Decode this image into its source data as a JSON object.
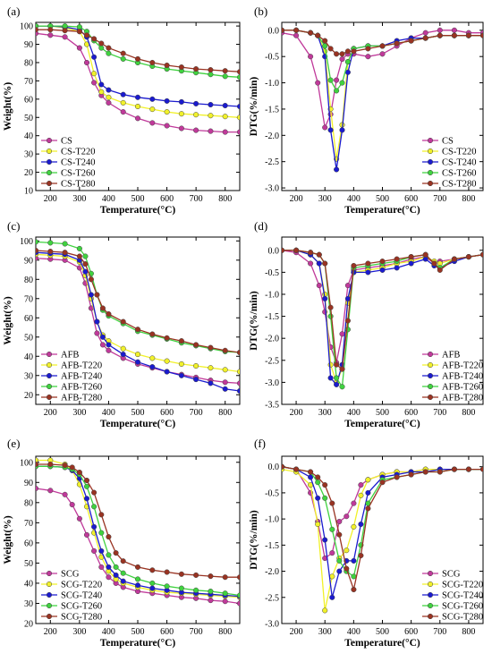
{
  "colors": [
    "#c0399a",
    "#f1f12a",
    "#1a1acf",
    "#3fd23f",
    "#993322"
  ],
  "chart_data": [
    {
      "type": "line",
      "panel_label": "(a)",
      "xlabel": "Temperature(°C)",
      "ylabel": "Weight(%)",
      "xlim": [
        150,
        850
      ],
      "ylim": [
        10,
        102
      ],
      "xticks": [
        200,
        300,
        400,
        500,
        600,
        700,
        800
      ],
      "yticks": [
        10,
        20,
        30,
        40,
        50,
        60,
        70,
        80,
        90,
        100
      ],
      "legend_position": "bottom-left",
      "x": [
        150,
        200,
        250,
        300,
        325,
        350,
        375,
        400,
        450,
        500,
        550,
        600,
        650,
        700,
        750,
        800,
        850
      ],
      "series": [
        {
          "name": "CS",
          "values": [
            96,
            95,
            94,
            88,
            80,
            69,
            62,
            58,
            53,
            49.5,
            47,
            45.5,
            44,
            43,
            42.5,
            42,
            42
          ]
        },
        {
          "name": "CS-T220",
          "values": [
            100,
            100,
            99,
            97,
            90,
            74,
            64,
            61,
            58,
            56,
            54.5,
            53,
            52,
            51.5,
            51,
            50.5,
            50
          ]
        },
        {
          "name": "CS-T240",
          "values": [
            100,
            100,
            99.5,
            98,
            94,
            83,
            68,
            65,
            62.5,
            61,
            60,
            59,
            58.5,
            57.5,
            57,
            56.5,
            56
          ]
        },
        {
          "name": "CS-T260",
          "values": [
            100,
            100,
            100,
            99.5,
            97,
            92,
            88,
            85,
            82,
            80,
            78,
            76.5,
            75.5,
            74.5,
            73.5,
            72.5,
            72
          ]
        },
        {
          "name": "CS-T280",
          "values": [
            98,
            98,
            97.5,
            97,
            95,
            93,
            90.5,
            88,
            85,
            82,
            80,
            78.5,
            77.5,
            76.5,
            76,
            75.5,
            75
          ]
        }
      ]
    },
    {
      "type": "line",
      "panel_label": "(b)",
      "xlabel": "Temperature(°C)",
      "ylabel": "DTG(%/min)",
      "xlim": [
        150,
        850
      ],
      "ylim": [
        -3.05,
        0.15
      ],
      "xticks": [
        200,
        300,
        400,
        500,
        600,
        700,
        800
      ],
      "yticks": [
        0.0,
        -0.5,
        -1.0,
        -1.5,
        -2.0,
        -2.5,
        -3.0
      ],
      "legend_position": "bottom-right",
      "x": [
        150,
        200,
        250,
        275,
        300,
        320,
        340,
        360,
        380,
        400,
        450,
        500,
        550,
        600,
        650,
        700,
        750,
        800,
        850
      ],
      "series": [
        {
          "name": "CS",
          "values": [
            -0.05,
            -0.1,
            -0.5,
            -1.0,
            -1.85,
            -1.6,
            -0.95,
            -0.55,
            -0.45,
            -0.45,
            -0.5,
            -0.45,
            -0.3,
            -0.15,
            -0.05,
            0.0,
            0.0,
            -0.05,
            -0.05
          ]
        },
        {
          "name": "CS-T220",
          "values": [
            0.0,
            0.0,
            -0.05,
            -0.1,
            -0.4,
            -1.5,
            -2.45,
            -1.8,
            -0.6,
            -0.35,
            -0.3,
            -0.3,
            -0.25,
            -0.2,
            -0.15,
            -0.1,
            -0.1,
            -0.1,
            -0.1
          ]
        },
        {
          "name": "CS-T240",
          "values": [
            0.0,
            0.0,
            -0.05,
            -0.1,
            -0.5,
            -1.9,
            -2.65,
            -1.9,
            -0.8,
            -0.35,
            -0.3,
            -0.3,
            -0.2,
            -0.15,
            -0.15,
            -0.1,
            -0.1,
            -0.1,
            -0.1
          ]
        },
        {
          "name": "CS-T260",
          "values": [
            0.0,
            0.0,
            -0.05,
            -0.1,
            -0.3,
            -0.95,
            -1.15,
            -1.0,
            -0.6,
            -0.35,
            -0.3,
            -0.3,
            -0.25,
            -0.2,
            -0.15,
            -0.1,
            -0.1,
            -0.1,
            -0.1
          ]
        },
        {
          "name": "CS-T280",
          "values": [
            0.0,
            0.0,
            -0.05,
            -0.1,
            -0.2,
            -0.35,
            -0.45,
            -0.45,
            -0.4,
            -0.4,
            -0.35,
            -0.3,
            -0.25,
            -0.2,
            -0.15,
            -0.1,
            -0.1,
            -0.1,
            -0.1
          ]
        }
      ]
    },
    {
      "type": "line",
      "panel_label": "(c)",
      "xlabel": "Temperature(°C)",
      "ylabel": "Weight(%)",
      "xlim": [
        150,
        850
      ],
      "ylim": [
        15,
        102
      ],
      "xticks": [
        200,
        300,
        400,
        500,
        600,
        700,
        800
      ],
      "yticks": [
        20,
        30,
        40,
        50,
        60,
        70,
        80,
        90,
        100
      ],
      "legend_position": "bottom-left",
      "x": [
        150,
        200,
        250,
        300,
        320,
        340,
        360,
        380,
        400,
        450,
        500,
        550,
        600,
        650,
        700,
        750,
        800,
        850
      ],
      "series": [
        {
          "name": "AFB",
          "values": [
            91,
            90.5,
            90,
            86,
            78,
            65,
            52,
            46,
            43,
            39,
            36,
            34,
            32,
            30.5,
            29,
            27.5,
            26.5,
            26
          ]
        },
        {
          "name": "AFB-T220",
          "values": [
            93,
            92.5,
            92,
            89,
            82,
            70,
            58,
            51,
            48,
            44,
            41,
            39,
            37.5,
            36,
            35,
            34,
            33,
            32
          ]
        },
        {
          "name": "AFB-T240",
          "values": [
            94,
            93.5,
            93,
            90,
            84,
            72,
            58,
            50,
            46,
            41,
            37,
            34.5,
            32,
            30,
            28,
            26,
            23,
            22
          ]
        },
        {
          "name": "AFB-T260",
          "values": [
            99.5,
            99,
            98.5,
            96,
            92,
            83,
            72,
            64,
            61,
            57,
            53,
            51,
            49,
            47,
            45.5,
            44,
            42.5,
            42
          ]
        },
        {
          "name": "AFB-T280",
          "values": [
            95,
            94.5,
            94,
            92,
            88,
            80,
            72,
            65,
            62,
            58,
            54,
            51.5,
            49.5,
            48,
            46,
            44.5,
            43,
            42
          ]
        }
      ]
    },
    {
      "type": "line",
      "panel_label": "(d)",
      "xlabel": "Temperature(°C)",
      "ylabel": "DTG(%/min)",
      "xlim": [
        150,
        850
      ],
      "ylim": [
        -3.5,
        0.3
      ],
      "xticks": [
        200,
        300,
        400,
        500,
        600,
        700,
        800
      ],
      "yticks": [
        0.0,
        -0.5,
        -1.0,
        -1.5,
        -2.0,
        -2.5,
        -3.0,
        -3.5
      ],
      "legend_position": "bottom-right",
      "x": [
        150,
        200,
        250,
        280,
        300,
        320,
        340,
        360,
        380,
        400,
        450,
        500,
        550,
        600,
        650,
        680,
        700,
        750,
        800,
        850
      ],
      "series": [
        {
          "name": "AFB",
          "values": [
            0.0,
            -0.05,
            -0.3,
            -0.8,
            -1.4,
            -2.2,
            -2.55,
            -1.9,
            -0.8,
            -0.45,
            -0.4,
            -0.35,
            -0.3,
            -0.2,
            -0.15,
            -0.3,
            -0.25,
            -0.2,
            -0.15,
            -0.1
          ]
        },
        {
          "name": "AFB-T220",
          "values": [
            0.0,
            0.0,
            -0.1,
            -0.3,
            -1.0,
            -2.6,
            -3.0,
            -2.7,
            -1.2,
            -0.5,
            -0.45,
            -0.4,
            -0.3,
            -0.25,
            -0.15,
            -0.25,
            -0.3,
            -0.2,
            -0.15,
            -0.1
          ]
        },
        {
          "name": "AFB-T240",
          "values": [
            0.0,
            0.0,
            -0.1,
            -0.3,
            -1.1,
            -2.9,
            -3.05,
            -2.6,
            -1.1,
            -0.5,
            -0.5,
            -0.45,
            -0.4,
            -0.3,
            -0.2,
            -0.35,
            -0.4,
            -0.25,
            -0.15,
            -0.1
          ]
        },
        {
          "name": "AFB-T260",
          "values": [
            0.0,
            0.0,
            -0.05,
            -0.1,
            -0.3,
            -1.5,
            -2.9,
            -3.1,
            -1.8,
            -0.4,
            -0.35,
            -0.3,
            -0.25,
            -0.15,
            -0.1,
            -0.3,
            -0.4,
            -0.2,
            -0.15,
            -0.1
          ]
        },
        {
          "name": "AFB-T280",
          "values": [
            0.0,
            0.0,
            -0.05,
            -0.1,
            -0.3,
            -1.3,
            -2.6,
            -2.7,
            -1.6,
            -0.35,
            -0.3,
            -0.25,
            -0.2,
            -0.15,
            -0.1,
            -0.3,
            -0.45,
            -0.2,
            -0.15,
            -0.1
          ]
        }
      ]
    },
    {
      "type": "line",
      "panel_label": "(e)",
      "xlabel": "Temperature(°C)",
      "ylabel": "Weight(%)",
      "xlim": [
        150,
        850
      ],
      "ylim": [
        20,
        103
      ],
      "xticks": [
        200,
        300,
        400,
        500,
        600,
        700,
        800
      ],
      "yticks": [
        20,
        30,
        40,
        50,
        60,
        70,
        80,
        90,
        100
      ],
      "legend_position": "bottom-left",
      "x": [
        150,
        200,
        250,
        275,
        300,
        325,
        350,
        375,
        400,
        425,
        450,
        500,
        550,
        600,
        650,
        700,
        750,
        800,
        850
      ],
      "series": [
        {
          "name": "SCG",
          "values": [
            87,
            86,
            84,
            79,
            72,
            64,
            56,
            48,
            43,
            40,
            38,
            36,
            35,
            34,
            33,
            32.5,
            31.5,
            31,
            30
          ]
        },
        {
          "name": "SCG-T220",
          "values": [
            101,
            101,
            99,
            96,
            89,
            78,
            65,
            53,
            46,
            42,
            40,
            38,
            36.5,
            35.5,
            35,
            34.5,
            34,
            33.5,
            33
          ]
        },
        {
          "name": "SCG-T240",
          "values": [
            98,
            98,
            97.5,
            96,
            92,
            82,
            68,
            56,
            48,
            44,
            41,
            39,
            37.5,
            36.5,
            35.5,
            35,
            34.5,
            34,
            33.5
          ]
        },
        {
          "name": "SCG-T260",
          "values": [
            98,
            98,
            97.5,
            96.5,
            94,
            88,
            78,
            65,
            54,
            48,
            45,
            42,
            40,
            38.5,
            37.5,
            36.5,
            36,
            35,
            34
          ]
        },
        {
          "name": "SCG-T280",
          "values": [
            99,
            99,
            98.5,
            97.5,
            95,
            91,
            85,
            74,
            63,
            55,
            51,
            48,
            46.5,
            45.5,
            44.5,
            44,
            43.5,
            43,
            43
          ]
        }
      ]
    },
    {
      "type": "line",
      "panel_label": "(f)",
      "xlabel": "Temperature(°C)",
      "ylabel": "DTG(%/min)",
      "xlim": [
        150,
        850
      ],
      "ylim": [
        -3.0,
        0.2
      ],
      "xticks": [
        200,
        300,
        400,
        500,
        600,
        700,
        800
      ],
      "yticks": [
        0.0,
        -0.5,
        -1.0,
        -1.5,
        -2.0,
        -2.5,
        -3.0
      ],
      "legend_position": "bottom-right",
      "x": [
        150,
        200,
        250,
        275,
        300,
        325,
        350,
        375,
        400,
        425,
        450,
        500,
        550,
        600,
        650,
        700,
        750,
        800,
        850
      ],
      "series": [
        {
          "name": "SCG",
          "values": [
            0.0,
            -0.05,
            -0.5,
            -1.05,
            -1.75,
            -1.65,
            -1.05,
            -0.95,
            -0.7,
            -0.35,
            -0.25,
            -0.15,
            -0.1,
            -0.1,
            -0.05,
            -0.05,
            -0.05,
            -0.05,
            -0.05
          ]
        },
        {
          "name": "SCG-T220",
          "values": [
            -0.05,
            -0.1,
            -0.35,
            -1.1,
            -2.75,
            -2.1,
            -1.75,
            -1.6,
            -1.15,
            -0.55,
            -0.25,
            -0.15,
            -0.1,
            -0.1,
            -0.05,
            -0.05,
            -0.05,
            -0.05,
            -0.05
          ]
        },
        {
          "name": "SCG-T240",
          "values": [
            0.0,
            -0.05,
            -0.2,
            -0.6,
            -1.4,
            -2.5,
            -2.0,
            -1.8,
            -1.8,
            -1.1,
            -0.5,
            -0.2,
            -0.15,
            -0.1,
            -0.1,
            -0.05,
            -0.05,
            -0.05,
            -0.05
          ]
        },
        {
          "name": "SCG-T260",
          "values": [
            0.0,
            -0.05,
            -0.1,
            -0.3,
            -0.6,
            -1.2,
            -1.8,
            -2.0,
            -2.1,
            -1.5,
            -0.7,
            -0.25,
            -0.2,
            -0.15,
            -0.1,
            -0.1,
            -0.05,
            -0.05,
            -0.05
          ]
        },
        {
          "name": "SCG-T280",
          "values": [
            0.0,
            -0.05,
            -0.1,
            -0.2,
            -0.35,
            -0.7,
            -1.3,
            -1.95,
            -2.35,
            -1.7,
            -0.8,
            -0.3,
            -0.2,
            -0.15,
            -0.1,
            -0.1,
            -0.05,
            -0.05,
            -0.05
          ]
        }
      ]
    }
  ]
}
